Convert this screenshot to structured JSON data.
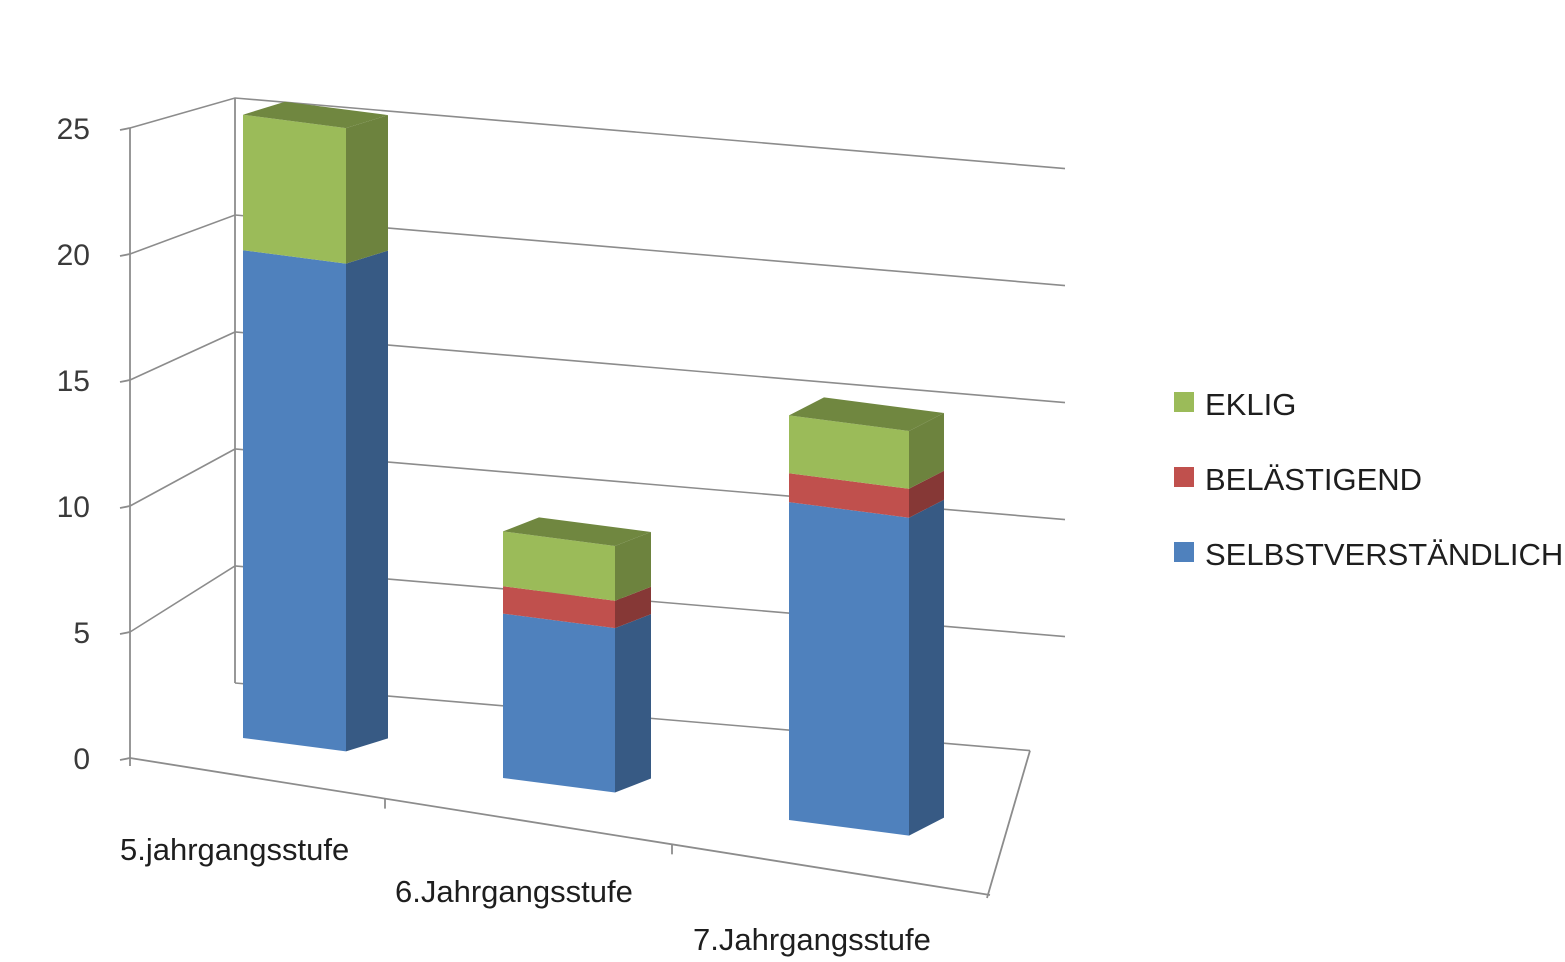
{
  "chart_data": {
    "type": "bar",
    "stacked": true,
    "three_d": true,
    "categories": [
      "5.jahrgangsstufe",
      "6.Jahrgangsstufe",
      "7.Jahrgangsstufe"
    ],
    "series": [
      {
        "name": "SELBSTVERSTÄNDLICH",
        "values": [
          18,
          6,
          11
        ],
        "color": "#4f81bd"
      },
      {
        "name": "BELÄSTIGEND",
        "values": [
          0,
          1,
          1
        ],
        "color": "#c0504d"
      },
      {
        "name": "EKLIG",
        "values": [
          5,
          2,
          2
        ],
        "color": "#9bbb59"
      }
    ],
    "title": "",
    "xlabel": "",
    "ylabel": "",
    "ylim": [
      0,
      25
    ],
    "yticks": [
      "0",
      "5",
      "10",
      "15",
      "20",
      "25"
    ],
    "grid": true,
    "legend_position": "right"
  }
}
